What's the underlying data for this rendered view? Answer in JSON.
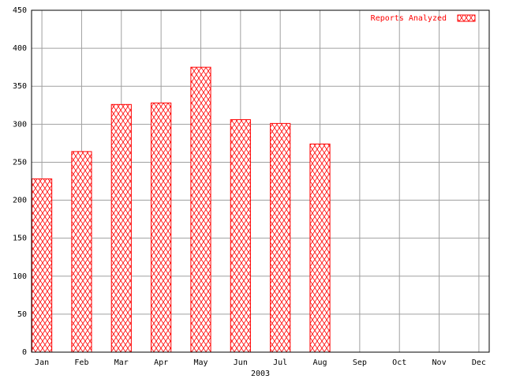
{
  "chart_data": {
    "type": "bar",
    "categories": [
      "Jan",
      "Feb",
      "Mar",
      "Apr",
      "May",
      "Jun",
      "Jul",
      "Aug",
      "Sep",
      "Oct",
      "Nov",
      "Dec"
    ],
    "series": [
      {
        "name": "Reports Analyzed",
        "color": "#ff0000",
        "values": [
          228,
          264,
          326,
          328,
          375,
          306,
          301,
          274,
          0,
          0,
          0,
          0
        ]
      }
    ],
    "xlabel": "2003",
    "ylim": [
      0,
      450
    ],
    "yticks": [
      0,
      50,
      100,
      150,
      200,
      250,
      300,
      350,
      400,
      450
    ],
    "grid": true,
    "legend": "top-right"
  }
}
